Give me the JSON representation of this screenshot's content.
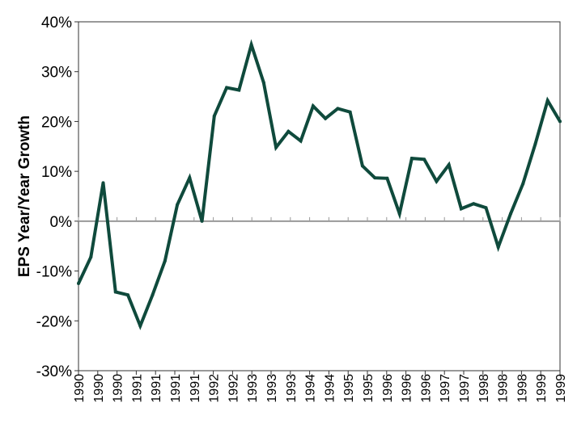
{
  "chart_data": {
    "type": "line",
    "title": "",
    "xlabel": "",
    "ylabel": "EPS Year/Year Growth",
    "ylim": [
      -30,
      40
    ],
    "yticks": [
      -30,
      -20,
      -10,
      0,
      10,
      20,
      30,
      40
    ],
    "ytick_labels": [
      "-30%",
      "-20%",
      "-10%",
      "0%",
      "10%",
      "20%",
      "30%",
      "40%"
    ],
    "xtick_labels": [
      "1990",
      "1990",
      "1990",
      "1991",
      "1991",
      "1991",
      "1991",
      "1992",
      "1992",
      "1993",
      "1993",
      "1993",
      "1994",
      "1994",
      "1995",
      "1995",
      "1996",
      "1996",
      "1996",
      "1997",
      "1997",
      "1998",
      "1998",
      "1998",
      "1999",
      "1999"
    ],
    "grid": false,
    "zero_line": true,
    "colors": {
      "line": "#0f4a3c",
      "zero_line": "#999999",
      "frame": "#333333",
      "background": "#ffffff"
    },
    "series": [
      {
        "values": [
          -12.5,
          -7.2,
          7.7,
          -14.2,
          -14.8,
          -21.0,
          -14.8,
          -8.0,
          3.3,
          8.7,
          0.0,
          21.1,
          26.8,
          26.3,
          35.4,
          27.8,
          14.8,
          18.0,
          16.1,
          23.1,
          20.6,
          22.6,
          21.9,
          11.1,
          8.7,
          8.6,
          1.5,
          12.6,
          12.4,
          8.0,
          11.3,
          2.5,
          3.5,
          2.7,
          -5.2,
          1.5,
          7.5,
          15.5,
          24.2,
          20.0
        ]
      }
    ]
  }
}
